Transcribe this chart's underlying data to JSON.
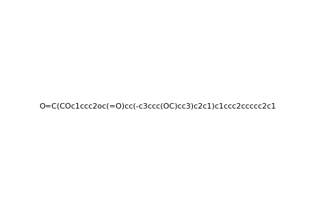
{
  "smiles": "O=C(COc1ccc2oc(=O)cc(-c3ccc(OC)cc3)c2c1)c1ccc2ccccc2c1",
  "title": "",
  "bg_color": "#ffffff",
  "line_color": "#000000",
  "figsize": [
    4.62,
    3.12
  ],
  "dpi": 100
}
